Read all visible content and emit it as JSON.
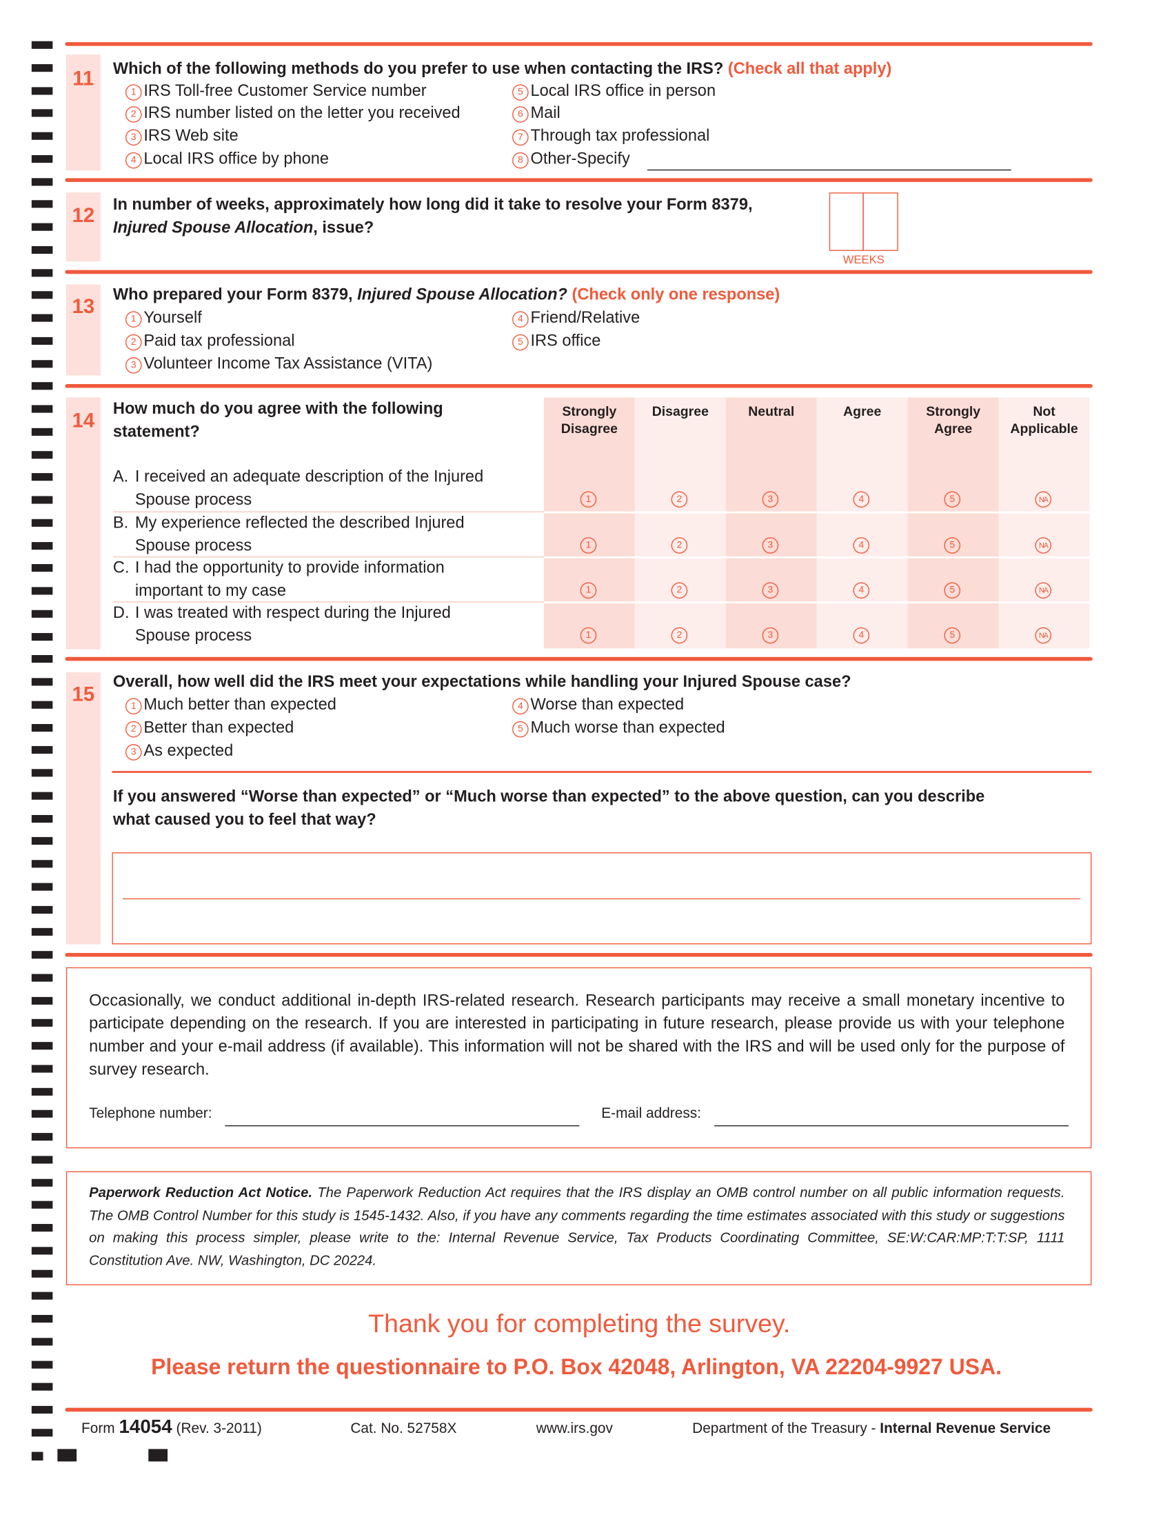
{
  "colors": {
    "accent": "#f05a3c",
    "band": "#fde0db",
    "cell_dark": "#fcdcd6",
    "cell_light": "#fdeeec"
  },
  "q11": {
    "number": "11",
    "question": "Which of the following methods do you prefer to use when contacting the IRS?",
    "instruction": "(Check all that apply)",
    "options": [
      {
        "code": "1",
        "label": "IRS Toll-free Customer Service number"
      },
      {
        "code": "2",
        "label": "IRS number listed on the letter you received"
      },
      {
        "code": "3",
        "label": "IRS Web site"
      },
      {
        "code": "4",
        "label": "Local IRS office by phone"
      },
      {
        "code": "5",
        "label": "Local IRS office in person"
      },
      {
        "code": "6",
        "label": "Mail"
      },
      {
        "code": "7",
        "label": "Through tax professional"
      },
      {
        "code": "8",
        "label": "Other-Specify"
      }
    ],
    "other_value": ""
  },
  "q12": {
    "number": "12",
    "question_part1": "In number of weeks, approximately how long did it take to resolve your Form 8379,",
    "question_italic": "Injured Spouse Allocation",
    "question_part2": ", issue?",
    "weeks_label": "WEEKS",
    "weeks_value": [
      "",
      ""
    ]
  },
  "q13": {
    "number": "13",
    "question_part1": "Who prepared your Form 8379, ",
    "question_italic": "Injured Spouse Allocation?",
    "instruction": "(Check only one response)",
    "options": [
      {
        "code": "1",
        "label": "Yourself"
      },
      {
        "code": "2",
        "label": "Paid tax professional"
      },
      {
        "code": "3",
        "label": "Volunteer Income Tax Assistance (VITA)"
      },
      {
        "code": "4",
        "label": "Friend/Relative"
      },
      {
        "code": "5",
        "label": "IRS office"
      }
    ]
  },
  "q14": {
    "number": "14",
    "question_line1": "How much do you agree with the following",
    "question_line2": "statement?",
    "columns": [
      {
        "line1": "Strongly",
        "line2": "Disagree",
        "code": "1"
      },
      {
        "line1": "Disagree",
        "line2": "",
        "code": "2"
      },
      {
        "line1": "Neutral",
        "line2": "",
        "code": "3"
      },
      {
        "line1": "Agree",
        "line2": "",
        "code": "4"
      },
      {
        "line1": "Strongly",
        "line2": "Agree",
        "code": "5"
      },
      {
        "line1": "Not",
        "line2": "Applicable",
        "code": "NA"
      }
    ],
    "statements": [
      {
        "letter": "A.",
        "line1": "I received an adequate description of the Injured",
        "line2": "Spouse process"
      },
      {
        "letter": "B.",
        "line1": "My experience reflected the described Injured",
        "line2": "Spouse process"
      },
      {
        "letter": "C.",
        "line1": "I had the opportunity to provide information",
        "line2": "important to my case"
      },
      {
        "letter": "D.",
        "line1": "I was treated with respect during the Injured",
        "line2": "Spouse process"
      }
    ]
  },
  "q15": {
    "number": "15",
    "question": "Overall, how well did the IRS meet your expectations while handling your Injured Spouse case?",
    "options": [
      {
        "code": "1",
        "label": "Much better than expected"
      },
      {
        "code": "2",
        "label": "Better than expected"
      },
      {
        "code": "3",
        "label": "As expected"
      },
      {
        "code": "4",
        "label": "Worse than expected"
      },
      {
        "code": "5",
        "label": "Much worse than expected"
      }
    ],
    "followup_line1": "If you answered “Worse than expected” or “Much worse than expected” to the above question, can you describe",
    "followup_line2": "what caused you to feel that way?",
    "followup_value": ""
  },
  "research": {
    "text": "Occasionally, we conduct additional in-depth IRS-related research. Research participants may receive a small monetary incentive to participate depending on the research. If you are interested in participating in future research, please provide us with your telephone number and your e-mail address (if available). This information will not be shared with the IRS and will be used only for the purpose of survey research.",
    "phone_label": "Telephone number:",
    "email_label": "E-mail address:",
    "phone_value": "",
    "email_value": ""
  },
  "paperwork": {
    "title": "Paperwork Reduction Act Notice.",
    "text": " The Paperwork Reduction Act requires that the IRS display an OMB control number on all public information requests. The OMB Control Number for this study is 1545-1432. Also, if you have any comments regarding the time estimates associated with this study or suggestions on making this process simpler, please write to the: Internal Revenue Service, Tax Products Coordinating Committee, SE:W:CAR:MP:T:T:SP, 1111 Constitution Ave. NW, Washington, DC 20224."
  },
  "closing": {
    "thanks": "Thank you for completing the survey.",
    "return": "Please return the questionnaire to P.O. Box 42048, Arlington, VA 22204-9927 USA."
  },
  "footer": {
    "form_prefix": "Form",
    "form_number": "14054",
    "revision": "(Rev. 3-2011)",
    "cat_no": "Cat. No. 52758X",
    "website": "www.irs.gov",
    "dept": "Department of the Treasury - ",
    "agency": "Internal Revenue Service"
  }
}
